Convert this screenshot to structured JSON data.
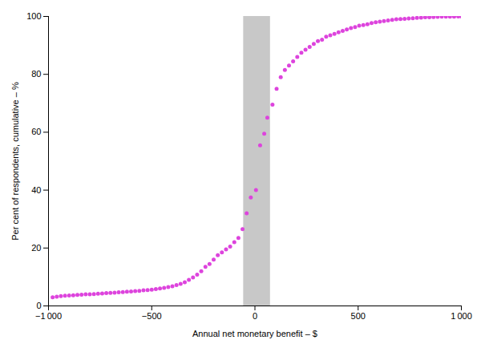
{
  "chart_data": {
    "type": "scatter",
    "xlabel": "Annual net monetary benefit – $",
    "ylabel": "Per cent of respondents, cumulative – %",
    "xlim": [
      -1000,
      1000
    ],
    "ylim": [
      0,
      100
    ],
    "xticks": [
      {
        "value": -1000,
        "label": "−1 000"
      },
      {
        "value": -500,
        "label": "−500"
      },
      0,
      500,
      {
        "value": 1000,
        "label": "1 000"
      }
    ],
    "yticks": [
      0,
      20,
      40,
      60,
      80,
      100
    ],
    "color": "#dd44dd",
    "band": {
      "x1": -55,
      "x2": 75,
      "color": "#c8c8c8"
    },
    "grid": false,
    "x": [
      -980,
      -960,
      -940,
      -920,
      -900,
      -880,
      -860,
      -840,
      -820,
      -800,
      -780,
      -760,
      -740,
      -720,
      -700,
      -680,
      -660,
      -640,
      -620,
      -600,
      -580,
      -560,
      -540,
      -520,
      -500,
      -480,
      -460,
      -440,
      -420,
      -400,
      -380,
      -360,
      -340,
      -320,
      -300,
      -280,
      -260,
      -240,
      -220,
      -200,
      -180,
      -160,
      -140,
      -120,
      -100,
      -80,
      -60,
      -40,
      -20,
      5,
      25,
      45,
      60,
      85,
      105,
      125,
      145,
      165,
      185,
      205,
      225,
      245,
      265,
      285,
      305,
      325,
      345,
      365,
      385,
      405,
      425,
      445,
      465,
      485,
      505,
      525,
      545,
      565,
      585,
      605,
      625,
      645,
      665,
      685,
      705,
      725,
      745,
      765,
      785,
      805,
      825,
      845,
      865,
      885,
      905,
      925,
      945,
      965,
      985,
      1000
    ],
    "values": [
      3.0,
      3.2,
      3.4,
      3.5,
      3.6,
      3.7,
      3.8,
      3.9,
      4.0,
      4.0,
      4.1,
      4.2,
      4.3,
      4.4,
      4.5,
      4.6,
      4.7,
      4.8,
      4.9,
      5.0,
      5.1,
      5.2,
      5.4,
      5.5,
      5.6,
      5.8,
      6.0,
      6.2,
      6.5,
      6.8,
      7.2,
      7.6,
      8.2,
      9.0,
      9.8,
      10.8,
      12.0,
      13.5,
      14.5,
      16.0,
      17.5,
      18.5,
      19.5,
      20.5,
      22.0,
      23.5,
      26.5,
      32.0,
      37.5,
      40.0,
      55.5,
      59.5,
      65.0,
      69.5,
      75.0,
      79.0,
      81.5,
      83.0,
      84.5,
      86.0,
      87.5,
      88.5,
      89.5,
      90.5,
      91.5,
      92.0,
      93.0,
      93.5,
      94.0,
      94.5,
      95.0,
      95.5,
      96.0,
      96.3,
      96.8,
      97.0,
      97.3,
      97.7,
      98.0,
      98.2,
      98.4,
      98.6,
      98.8,
      99.0,
      99.1,
      99.2,
      99.3,
      99.4,
      99.5,
      99.6,
      99.7,
      99.75,
      99.8,
      99.85,
      99.9,
      99.92,
      99.94,
      99.96,
      99.98,
      100.0
    ]
  }
}
